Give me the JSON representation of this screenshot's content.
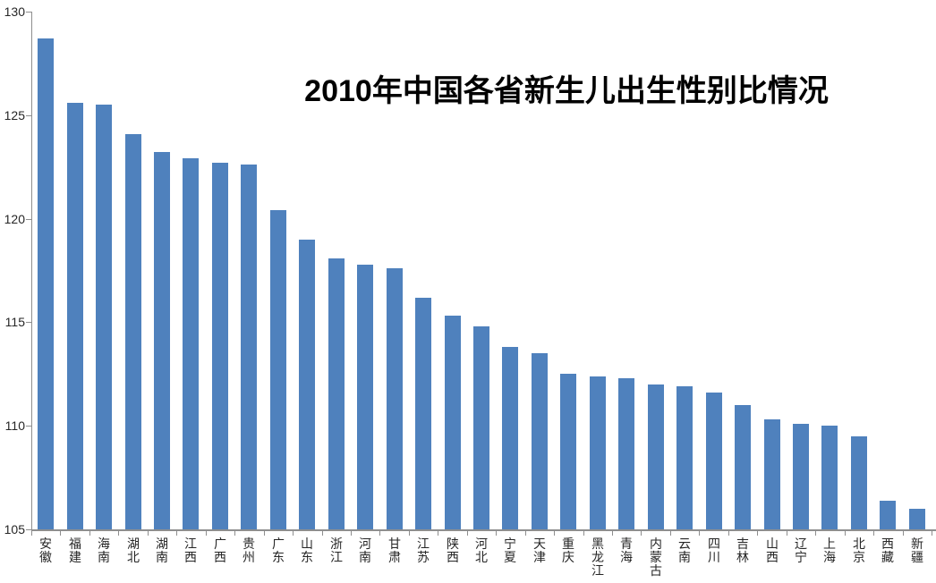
{
  "chart_data": {
    "type": "bar",
    "title": "2010年中国各省新生儿出生性别比情况",
    "categories": [
      "安徽",
      "福建",
      "海南",
      "湖北",
      "湖南",
      "江西",
      "广西",
      "贵州",
      "广东",
      "山东",
      "浙江",
      "河南",
      "甘肃",
      "江苏",
      "陕西",
      "河北",
      "宁夏",
      "天津",
      "重庆",
      "黑龙江",
      "青海",
      "内蒙古",
      "云南",
      "四川",
      "吉林",
      "山西",
      "辽宁",
      "上海",
      "北京",
      "西藏",
      "新疆"
    ],
    "values": [
      128.7,
      125.6,
      125.5,
      124.1,
      123.2,
      122.9,
      122.7,
      122.6,
      120.4,
      119.0,
      118.1,
      117.8,
      117.6,
      116.2,
      115.3,
      114.8,
      113.8,
      113.5,
      112.5,
      112.4,
      112.3,
      112.0,
      111.9,
      111.6,
      111.0,
      110.3,
      110.1,
      110.0,
      109.5,
      106.4,
      106.0
    ],
    "xlabel": "",
    "ylabel": "",
    "ylim": [
      105,
      130
    ],
    "yticks": [
      105,
      110,
      115,
      120,
      125,
      130
    ],
    "grid": false,
    "legend": false,
    "bar_color": "#4f81bd",
    "axis_color": "#8e8e8e",
    "text_color": "#262626",
    "title_color": "#000000",
    "background_color": "#ffffff"
  }
}
